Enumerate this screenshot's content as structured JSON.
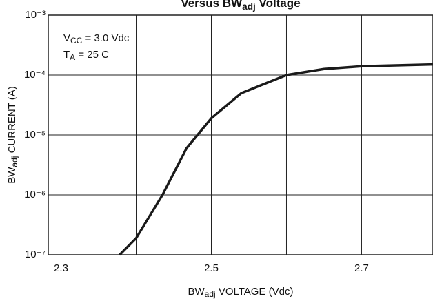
{
  "chart_data": {
    "type": "line",
    "title": [
      {
        "text": "Versus BW"
      },
      {
        "text": "adj",
        "sub": true
      },
      {
        "text": " Voltage"
      }
    ],
    "xlabel": [
      {
        "text": "BW"
      },
      {
        "text": "adj",
        "sub": true
      },
      {
        "text": " VOLTAGE (Vdc)"
      }
    ],
    "ylabel": [
      {
        "text": "BW"
      },
      {
        "text": "adj",
        "sub": true
      },
      {
        "text": " CURRENT (A)"
      }
    ],
    "annotations": [
      [
        {
          "text": "V"
        },
        {
          "text": "CC",
          "sub": true
        },
        {
          "text": " = 3.0 Vdc"
        }
      ],
      [
        {
          "text": "T"
        },
        {
          "text": "A",
          "sub": true
        },
        {
          "text": " = 25  C"
        }
      ]
    ],
    "x": [
      2.378,
      2.4,
      2.435,
      2.467,
      2.5,
      2.54,
      2.6,
      2.65,
      2.7,
      2.795
    ],
    "series": [
      {
        "color": "#1a1a1a",
        "values": [
          1e-07,
          1.9e-07,
          1e-06,
          6e-06,
          1.9e-05,
          5e-05,
          0.0001,
          0.000126,
          0.00014,
          0.00015
        ]
      }
    ],
    "xlim": [
      2.283,
      2.795
    ],
    "ylim": [
      1e-07,
      0.001
    ],
    "xticks": [
      2.3,
      2.5,
      2.7
    ],
    "xgrid": [
      2.4,
      2.5,
      2.6,
      2.7
    ],
    "yticks": [
      {
        "value": 1e-07,
        "label": "10⁻⁷"
      },
      {
        "value": 1e-06,
        "label": "10⁻⁶"
      },
      {
        "value": 1e-05,
        "label": "10⁻⁵"
      },
      {
        "value": 0.0001,
        "label": "10⁻⁴"
      },
      {
        "value": 0.001,
        "label": "10⁻³"
      }
    ],
    "log_y": true,
    "grid": true
  }
}
